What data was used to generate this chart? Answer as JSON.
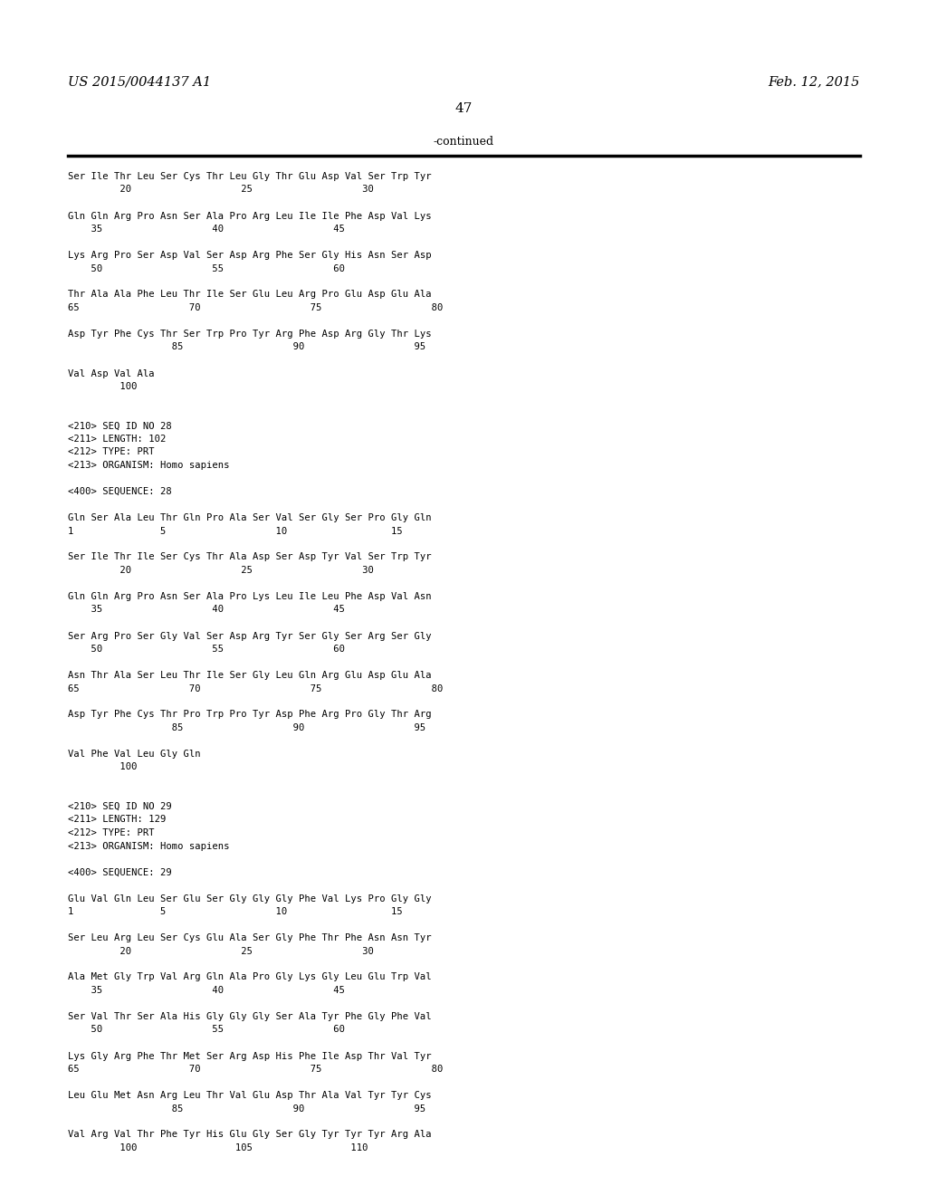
{
  "header_left": "US 2015/0044137 A1",
  "header_right": "Feb. 12, 2015",
  "page_number": "47",
  "continued_label": "-continued",
  "background_color": "#ffffff",
  "text_color": "#000000",
  "lines": [
    "Ser Ile Thr Leu Ser Cys Thr Leu Gly Thr Glu Asp Val Ser Trp Tyr",
    "         20                   25                   30",
    "",
    "Gln Gln Arg Pro Asn Ser Ala Pro Arg Leu Ile Ile Phe Asp Val Lys",
    "    35                   40                   45",
    "",
    "Lys Arg Pro Ser Asp Val Ser Asp Arg Phe Ser Gly His Asn Ser Asp",
    "    50                   55                   60",
    "",
    "Thr Ala Ala Phe Leu Thr Ile Ser Glu Leu Arg Pro Glu Asp Glu Ala",
    "65                   70                   75                   80",
    "",
    "Asp Tyr Phe Cys Thr Ser Trp Pro Tyr Arg Phe Asp Arg Gly Thr Lys",
    "                  85                   90                   95",
    "",
    "Val Asp Val Ala",
    "         100",
    "",
    "",
    "<210> SEQ ID NO 28",
    "<211> LENGTH: 102",
    "<212> TYPE: PRT",
    "<213> ORGANISM: Homo sapiens",
    "",
    "<400> SEQUENCE: 28",
    "",
    "Gln Ser Ala Leu Thr Gln Pro Ala Ser Val Ser Gly Ser Pro Gly Gln",
    "1               5                   10                  15",
    "",
    "Ser Ile Thr Ile Ser Cys Thr Ala Asp Ser Asp Tyr Val Ser Trp Tyr",
    "         20                   25                   30",
    "",
    "Gln Gln Arg Pro Asn Ser Ala Pro Lys Leu Ile Leu Phe Asp Val Asn",
    "    35                   40                   45",
    "",
    "Ser Arg Pro Ser Gly Val Ser Asp Arg Tyr Ser Gly Ser Arg Ser Gly",
    "    50                   55                   60",
    "",
    "Asn Thr Ala Ser Leu Thr Ile Ser Gly Leu Gln Arg Glu Asp Glu Ala",
    "65                   70                   75                   80",
    "",
    "Asp Tyr Phe Cys Thr Pro Trp Pro Tyr Asp Phe Arg Pro Gly Thr Arg",
    "                  85                   90                   95",
    "",
    "Val Phe Val Leu Gly Gln",
    "         100",
    "",
    "",
    "<210> SEQ ID NO 29",
    "<211> LENGTH: 129",
    "<212> TYPE: PRT",
    "<213> ORGANISM: Homo sapiens",
    "",
    "<400> SEQUENCE: 29",
    "",
    "Glu Val Gln Leu Ser Glu Ser Gly Gly Gly Phe Val Lys Pro Gly Gly",
    "1               5                   10                  15",
    "",
    "Ser Leu Arg Leu Ser Cys Glu Ala Ser Gly Phe Thr Phe Asn Asn Tyr",
    "         20                   25                   30",
    "",
    "Ala Met Gly Trp Val Arg Gln Ala Pro Gly Lys Gly Leu Glu Trp Val",
    "    35                   40                   45",
    "",
    "Ser Val Thr Ser Ala His Gly Gly Gly Ser Ala Tyr Phe Gly Phe Val",
    "    50                   55                   60",
    "",
    "Lys Gly Arg Phe Thr Met Ser Arg Asp His Phe Ile Asp Thr Val Tyr",
    "65                   70                   75                   80",
    "",
    "Leu Glu Met Asn Arg Leu Thr Val Glu Asp Thr Ala Val Tyr Tyr Cys",
    "                  85                   90                   95",
    "",
    "Val Arg Val Thr Phe Tyr His Glu Gly Ser Gly Tyr Tyr Tyr Arg Ala",
    "         100                 105                 110"
  ]
}
